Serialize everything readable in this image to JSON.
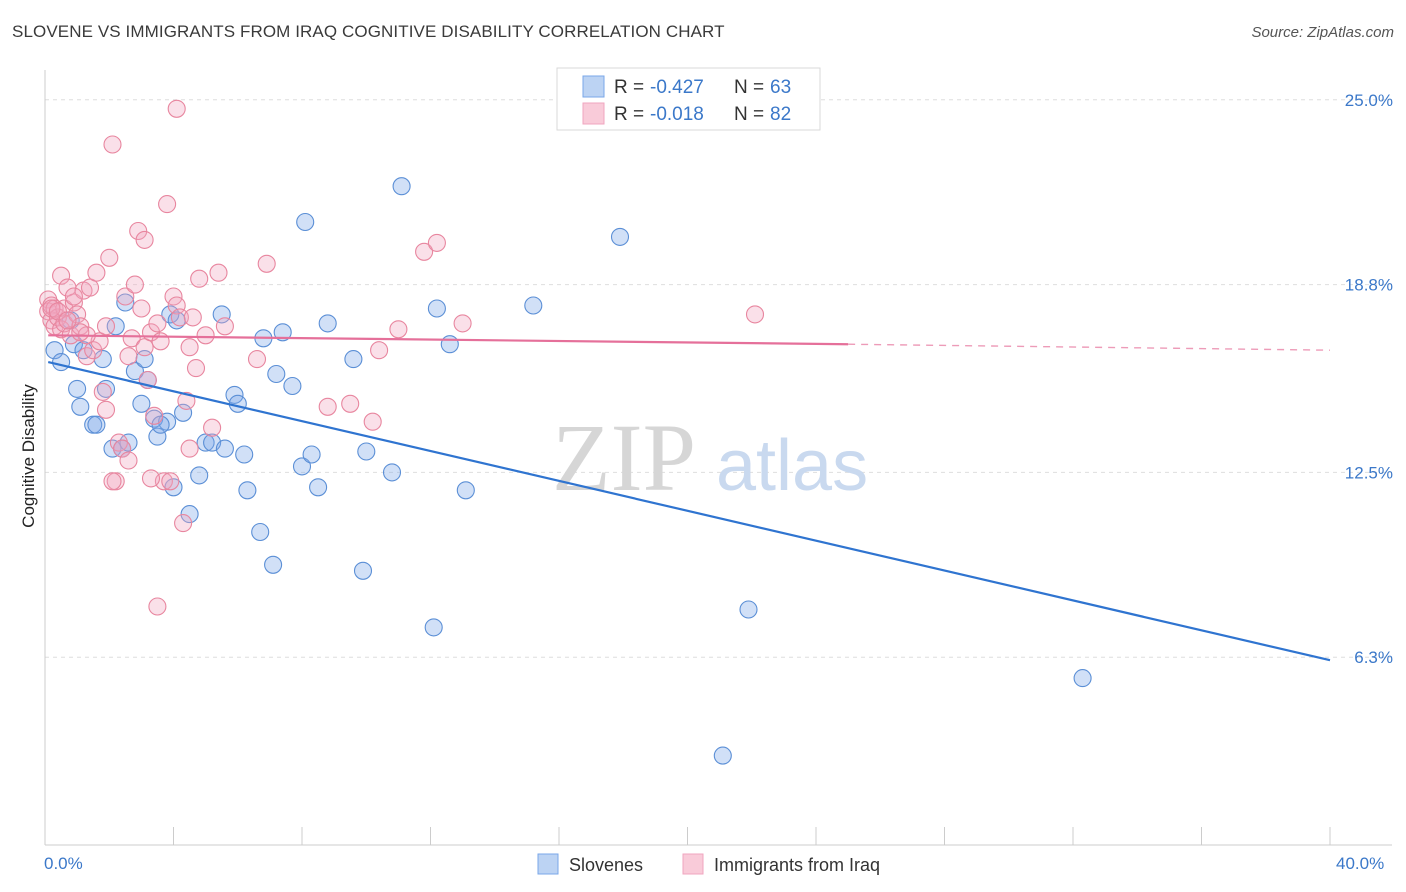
{
  "header": {
    "title": "SLOVENE VS IMMIGRANTS FROM IRAQ COGNITIVE DISABILITY CORRELATION CHART",
    "source": "Source: ZipAtlas.com"
  },
  "watermark": {
    "zip": "ZIP",
    "atlas": "atlas"
  },
  "legend": {
    "rows": [
      {
        "r_label": "R =",
        "r_value": "-0.427",
        "n_label": "N =",
        "n_value": "63",
        "color": "#7aa7e8"
      },
      {
        "r_label": "R =",
        "r_value": "-0.018",
        "n_label": "N =",
        "n_value": "82",
        "color": "#f0a6bf"
      }
    ]
  },
  "chart_data": {
    "type": "scatter",
    "title": "SLOVENE VS IMMIGRANTS FROM IRAQ COGNITIVE DISABILITY CORRELATION CHART",
    "xlabel": "",
    "ylabel": "Cognitive Disability",
    "xlim": [
      0,
      40
    ],
    "ylim": [
      0,
      26
    ],
    "x_tick_labels": [
      "0.0%",
      "40.0%"
    ],
    "y_ticks": [
      {
        "value": 25.0,
        "label": "25.0%"
      },
      {
        "value": 18.8,
        "label": "18.8%"
      },
      {
        "value": 12.5,
        "label": "12.5%"
      },
      {
        "value": 6.3,
        "label": "6.3%"
      }
    ],
    "grid": true,
    "legend_position": "top-center",
    "series": [
      {
        "name": "Slovenes",
        "color": "#7aa7e8",
        "stroke": "#5b8fd6",
        "trend": {
          "x0": 0.1,
          "y0": 16.2,
          "x1": 40.0,
          "y1": 6.2,
          "color": "#2f74d0"
        },
        "points": [
          [
            0.3,
            16.6
          ],
          [
            0.5,
            16.2
          ],
          [
            0.9,
            16.8
          ],
          [
            1.0,
            15.3
          ],
          [
            1.1,
            14.7
          ],
          [
            1.5,
            14.1
          ],
          [
            1.6,
            14.1
          ],
          [
            1.8,
            16.3
          ],
          [
            1.9,
            15.3
          ],
          [
            2.1,
            13.3
          ],
          [
            2.2,
            17.4
          ],
          [
            2.4,
            13.3
          ],
          [
            2.6,
            13.5
          ],
          [
            2.5,
            18.2
          ],
          [
            2.8,
            15.9
          ],
          [
            3.0,
            14.8
          ],
          [
            3.1,
            16.3
          ],
          [
            3.2,
            15.6
          ],
          [
            3.4,
            14.3
          ],
          [
            3.5,
            13.7
          ],
          [
            3.8,
            14.2
          ],
          [
            3.9,
            17.8
          ],
          [
            4.0,
            12.0
          ],
          [
            4.1,
            17.6
          ],
          [
            4.3,
            14.5
          ],
          [
            4.5,
            11.1
          ],
          [
            4.8,
            12.4
          ],
          [
            5.0,
            13.5
          ],
          [
            5.2,
            13.5
          ],
          [
            5.5,
            17.8
          ],
          [
            5.6,
            13.3
          ],
          [
            5.9,
            15.1
          ],
          [
            6.0,
            14.8
          ],
          [
            6.2,
            13.1
          ],
          [
            6.3,
            11.9
          ],
          [
            6.7,
            10.5
          ],
          [
            6.8,
            17.0
          ],
          [
            7.1,
            9.4
          ],
          [
            7.2,
            15.8
          ],
          [
            7.4,
            17.2
          ],
          [
            7.7,
            15.4
          ],
          [
            8.0,
            12.7
          ],
          [
            8.1,
            20.9
          ],
          [
            8.3,
            13.1
          ],
          [
            8.5,
            12.0
          ],
          [
            8.8,
            17.5
          ],
          [
            9.6,
            16.3
          ],
          [
            9.9,
            9.2
          ],
          [
            10.0,
            13.2
          ],
          [
            10.8,
            12.5
          ],
          [
            11.1,
            22.1
          ],
          [
            12.1,
            7.3
          ],
          [
            12.2,
            18.0
          ],
          [
            12.6,
            16.8
          ],
          [
            13.1,
            11.9
          ],
          [
            15.2,
            18.1
          ],
          [
            17.9,
            20.4
          ],
          [
            21.9,
            7.9
          ],
          [
            32.3,
            5.6
          ],
          [
            21.1,
            3.0
          ],
          [
            0.8,
            17.6
          ],
          [
            1.2,
            16.6
          ],
          [
            3.6,
            14.1
          ]
        ]
      },
      {
        "name": "Immigrants from Iraq",
        "color": "#f0a6bf",
        "stroke": "#e8869f",
        "trend": {
          "x0": 0.1,
          "y0": 17.1,
          "x1": 25.0,
          "y1": 16.8,
          "color": "#e5709a",
          "dash_to_x": 40.0,
          "dash_to_y": 16.6
        },
        "points": [
          [
            0.1,
            18.3
          ],
          [
            0.1,
            17.9
          ],
          [
            0.2,
            18.1
          ],
          [
            0.2,
            17.6
          ],
          [
            0.3,
            17.4
          ],
          [
            0.3,
            18.0
          ],
          [
            0.4,
            17.7
          ],
          [
            0.5,
            17.3
          ],
          [
            0.5,
            19.1
          ],
          [
            0.6,
            18.0
          ],
          [
            0.6,
            17.5
          ],
          [
            0.7,
            18.7
          ],
          [
            0.8,
            17.1
          ],
          [
            0.9,
            18.2
          ],
          [
            1.0,
            17.8
          ],
          [
            1.1,
            17.4
          ],
          [
            1.2,
            18.6
          ],
          [
            1.3,
            16.4
          ],
          [
            1.4,
            18.7
          ],
          [
            1.5,
            16.6
          ],
          [
            1.6,
            19.2
          ],
          [
            1.7,
            16.9
          ],
          [
            1.8,
            15.2
          ],
          [
            1.9,
            14.6
          ],
          [
            2.0,
            19.7
          ],
          [
            2.1,
            23.5
          ],
          [
            2.2,
            12.2
          ],
          [
            2.3,
            13.5
          ],
          [
            2.4,
            13.3
          ],
          [
            2.5,
            18.4
          ],
          [
            2.6,
            16.4
          ],
          [
            2.7,
            17.0
          ],
          [
            2.8,
            18.8
          ],
          [
            2.9,
            20.6
          ],
          [
            3.0,
            18.0
          ],
          [
            3.1,
            16.7
          ],
          [
            3.2,
            15.6
          ],
          [
            3.3,
            17.2
          ],
          [
            3.4,
            14.4
          ],
          [
            3.5,
            17.5
          ],
          [
            3.6,
            16.9
          ],
          [
            3.7,
            12.2
          ],
          [
            3.8,
            21.5
          ],
          [
            3.9,
            12.2
          ],
          [
            4.0,
            18.4
          ],
          [
            4.1,
            18.1
          ],
          [
            4.2,
            17.7
          ],
          [
            4.3,
            10.8
          ],
          [
            4.4,
            14.9
          ],
          [
            4.5,
            13.3
          ],
          [
            4.6,
            17.7
          ],
          [
            4.7,
            16.0
          ],
          [
            4.8,
            19.0
          ],
          [
            5.0,
            17.1
          ],
          [
            5.2,
            14.0
          ],
          [
            5.4,
            19.2
          ],
          [
            5.6,
            17.4
          ],
          [
            6.6,
            16.3
          ],
          [
            6.9,
            19.5
          ],
          [
            8.8,
            14.7
          ],
          [
            9.5,
            14.8
          ],
          [
            10.2,
            14.2
          ],
          [
            10.4,
            16.6
          ],
          [
            11.0,
            17.3
          ],
          [
            11.8,
            19.9
          ],
          [
            12.2,
            20.2
          ],
          [
            13.0,
            17.5
          ],
          [
            22.1,
            17.8
          ],
          [
            4.1,
            24.7
          ],
          [
            3.1,
            20.3
          ],
          [
            2.1,
            12.2
          ],
          [
            1.3,
            17.1
          ],
          [
            0.2,
            18.0
          ],
          [
            0.4,
            17.9
          ],
          [
            0.7,
            17.6
          ],
          [
            0.9,
            18.4
          ],
          [
            1.1,
            17.2
          ],
          [
            1.9,
            17.4
          ],
          [
            2.6,
            12.9
          ],
          [
            3.5,
            8.0
          ],
          [
            4.5,
            16.7
          ],
          [
            3.3,
            12.3
          ]
        ]
      }
    ]
  },
  "bottom_legend": {
    "items": [
      {
        "label": "Slovenes",
        "color": "#7aa7e8"
      },
      {
        "label": "Immigrants from Iraq",
        "color": "#f0a6bf"
      }
    ]
  }
}
